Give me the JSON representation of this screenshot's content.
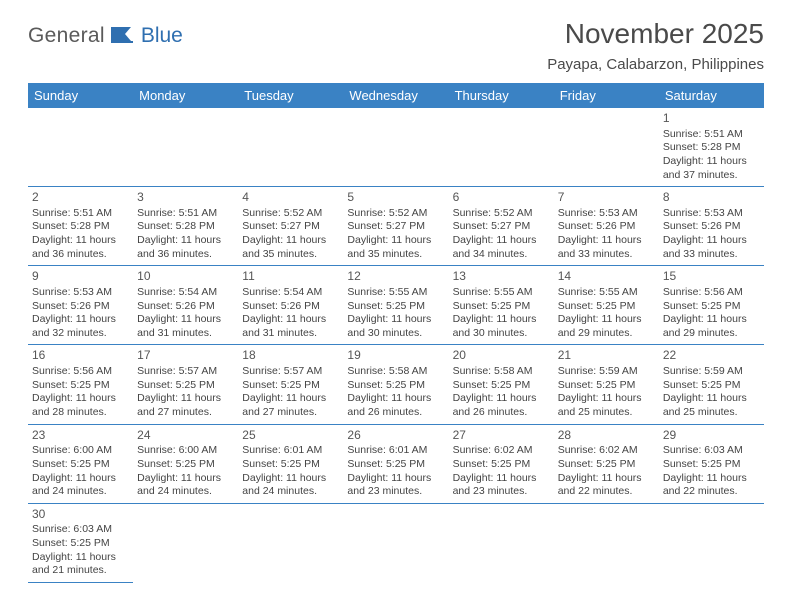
{
  "logo": {
    "part1": "General",
    "part2": "Blue"
  },
  "title": "November 2025",
  "location": "Payapa, Calabarzon, Philippines",
  "colors": {
    "header_bg": "#3a82c4",
    "header_text": "#ffffff",
    "border": "#3a82c4",
    "logo_accent": "#2f6fb0"
  },
  "weekdays": [
    "Sunday",
    "Monday",
    "Tuesday",
    "Wednesday",
    "Thursday",
    "Friday",
    "Saturday"
  ],
  "weeks": [
    [
      null,
      null,
      null,
      null,
      null,
      null,
      {
        "d": "1",
        "sr": "5:51 AM",
        "ss": "5:28 PM",
        "dl": "11 hours and 37 minutes."
      }
    ],
    [
      {
        "d": "2",
        "sr": "5:51 AM",
        "ss": "5:28 PM",
        "dl": "11 hours and 36 minutes."
      },
      {
        "d": "3",
        "sr": "5:51 AM",
        "ss": "5:28 PM",
        "dl": "11 hours and 36 minutes."
      },
      {
        "d": "4",
        "sr": "5:52 AM",
        "ss": "5:27 PM",
        "dl": "11 hours and 35 minutes."
      },
      {
        "d": "5",
        "sr": "5:52 AM",
        "ss": "5:27 PM",
        "dl": "11 hours and 35 minutes."
      },
      {
        "d": "6",
        "sr": "5:52 AM",
        "ss": "5:27 PM",
        "dl": "11 hours and 34 minutes."
      },
      {
        "d": "7",
        "sr": "5:53 AM",
        "ss": "5:26 PM",
        "dl": "11 hours and 33 minutes."
      },
      {
        "d": "8",
        "sr": "5:53 AM",
        "ss": "5:26 PM",
        "dl": "11 hours and 33 minutes."
      }
    ],
    [
      {
        "d": "9",
        "sr": "5:53 AM",
        "ss": "5:26 PM",
        "dl": "11 hours and 32 minutes."
      },
      {
        "d": "10",
        "sr": "5:54 AM",
        "ss": "5:26 PM",
        "dl": "11 hours and 31 minutes."
      },
      {
        "d": "11",
        "sr": "5:54 AM",
        "ss": "5:26 PM",
        "dl": "11 hours and 31 minutes."
      },
      {
        "d": "12",
        "sr": "5:55 AM",
        "ss": "5:25 PM",
        "dl": "11 hours and 30 minutes."
      },
      {
        "d": "13",
        "sr": "5:55 AM",
        "ss": "5:25 PM",
        "dl": "11 hours and 30 minutes."
      },
      {
        "d": "14",
        "sr": "5:55 AM",
        "ss": "5:25 PM",
        "dl": "11 hours and 29 minutes."
      },
      {
        "d": "15",
        "sr": "5:56 AM",
        "ss": "5:25 PM",
        "dl": "11 hours and 29 minutes."
      }
    ],
    [
      {
        "d": "16",
        "sr": "5:56 AM",
        "ss": "5:25 PM",
        "dl": "11 hours and 28 minutes."
      },
      {
        "d": "17",
        "sr": "5:57 AM",
        "ss": "5:25 PM",
        "dl": "11 hours and 27 minutes."
      },
      {
        "d": "18",
        "sr": "5:57 AM",
        "ss": "5:25 PM",
        "dl": "11 hours and 27 minutes."
      },
      {
        "d": "19",
        "sr": "5:58 AM",
        "ss": "5:25 PM",
        "dl": "11 hours and 26 minutes."
      },
      {
        "d": "20",
        "sr": "5:58 AM",
        "ss": "5:25 PM",
        "dl": "11 hours and 26 minutes."
      },
      {
        "d": "21",
        "sr": "5:59 AM",
        "ss": "5:25 PM",
        "dl": "11 hours and 25 minutes."
      },
      {
        "d": "22",
        "sr": "5:59 AM",
        "ss": "5:25 PM",
        "dl": "11 hours and 25 minutes."
      }
    ],
    [
      {
        "d": "23",
        "sr": "6:00 AM",
        "ss": "5:25 PM",
        "dl": "11 hours and 24 minutes."
      },
      {
        "d": "24",
        "sr": "6:00 AM",
        "ss": "5:25 PM",
        "dl": "11 hours and 24 minutes."
      },
      {
        "d": "25",
        "sr": "6:01 AM",
        "ss": "5:25 PM",
        "dl": "11 hours and 24 minutes."
      },
      {
        "d": "26",
        "sr": "6:01 AM",
        "ss": "5:25 PM",
        "dl": "11 hours and 23 minutes."
      },
      {
        "d": "27",
        "sr": "6:02 AM",
        "ss": "5:25 PM",
        "dl": "11 hours and 23 minutes."
      },
      {
        "d": "28",
        "sr": "6:02 AM",
        "ss": "5:25 PM",
        "dl": "11 hours and 22 minutes."
      },
      {
        "d": "29",
        "sr": "6:03 AM",
        "ss": "5:25 PM",
        "dl": "11 hours and 22 minutes."
      }
    ],
    [
      {
        "d": "30",
        "sr": "6:03 AM",
        "ss": "5:25 PM",
        "dl": "11 hours and 21 minutes."
      },
      null,
      null,
      null,
      null,
      null,
      null
    ]
  ],
  "labels": {
    "sunrise": "Sunrise:",
    "sunset": "Sunset:",
    "daylight": "Daylight:"
  }
}
